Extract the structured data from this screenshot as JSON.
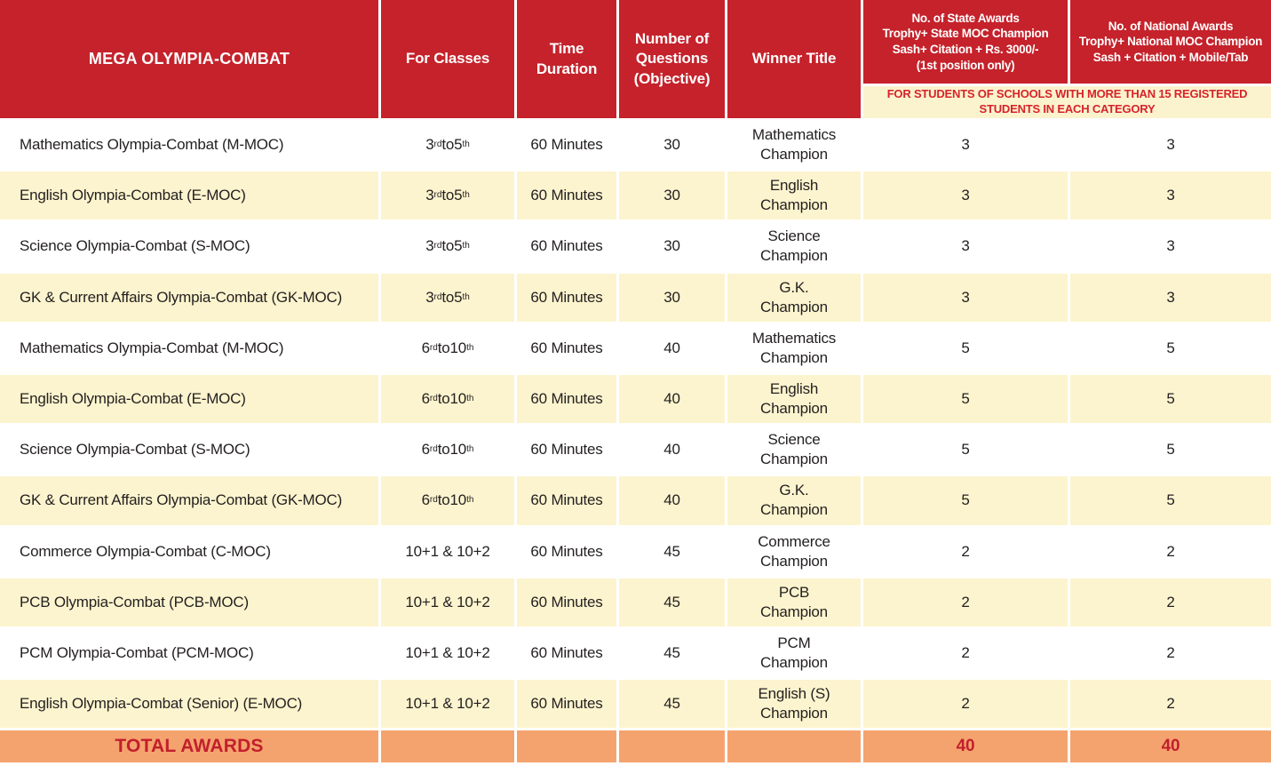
{
  "table": {
    "header": {
      "program": "MEGA OLYMPIA-COMBAT",
      "classes": "For Classes",
      "duration": "Time\nDuration",
      "questions": "Number of\nQuestions\n(Objective)",
      "winner": "Winner Title",
      "state_awards": "No. of State Awards\nTrophy+ State MOC Champion\nSash+ Citation + Rs. 3000/-\n(1st position only)",
      "national_awards": "No. of National Awards\nTrophy+ National MOC Champion\nSash + Citation + Mobile/Tab",
      "banner": "FOR STUDENTS OF SCHOOLS WITH MORE THAN 15 REGISTERED\nSTUDENTS IN EACH CATEGORY"
    },
    "rows": [
      {
        "name": "Mathematics Olympia-Combat (M-MOC)",
        "ca": "3",
        "sa": "rd",
        "cm": " to ",
        "cb": "5",
        "sb": "th",
        "duration": "60 Minutes",
        "questions": "30",
        "winner": "Mathematics\nChampion",
        "state": "3",
        "national": "3"
      },
      {
        "name": "English Olympia-Combat (E-MOC)",
        "ca": "3",
        "sa": "rd",
        "cm": " to ",
        "cb": "5",
        "sb": "th",
        "duration": "60 Minutes",
        "questions": "30",
        "winner": "English\nChampion",
        "state": "3",
        "national": "3"
      },
      {
        "name": "Science Olympia-Combat (S-MOC)",
        "ca": "3",
        "sa": "rd",
        "cm": " to ",
        "cb": "5",
        "sb": "th",
        "duration": "60 Minutes",
        "questions": "30",
        "winner": "Science\nChampion",
        "state": "3",
        "national": "3"
      },
      {
        "name": "GK & Current Affairs Olympia-Combat (GK-MOC)",
        "ca": "3",
        "sa": "rd",
        "cm": " to ",
        "cb": "5",
        "sb": "th",
        "duration": "60 Minutes",
        "questions": "30",
        "winner": "G.K.\nChampion",
        "state": "3",
        "national": "3"
      },
      {
        "name": "Mathematics Olympia-Combat (M-MOC)",
        "ca": "6",
        "sa": "rd",
        "cm": " to ",
        "cb": "10",
        "sb": "th",
        "duration": "60 Minutes",
        "questions": "40",
        "winner": "Mathematics\nChampion",
        "state": "5",
        "national": "5"
      },
      {
        "name": "English Olympia-Combat (E-MOC)",
        "ca": "6",
        "sa": "rd",
        "cm": " to ",
        "cb": "10",
        "sb": "th",
        "duration": "60 Minutes",
        "questions": "40",
        "winner": "English\nChampion",
        "state": "5",
        "national": "5"
      },
      {
        "name": "Science Olympia-Combat (S-MOC)",
        "ca": "6",
        "sa": "rd",
        "cm": " to ",
        "cb": "10",
        "sb": "th",
        "duration": "60 Minutes",
        "questions": "40",
        "winner": "Science\nChampion",
        "state": "5",
        "national": "5"
      },
      {
        "name": "GK & Current Affairs Olympia-Combat (GK-MOC)",
        "ca": "6",
        "sa": "rd",
        "cm": " to ",
        "cb": "10",
        "sb": "th",
        "duration": "60 Minutes",
        "questions": "40",
        "winner": "G.K.\nChampion",
        "state": "5",
        "national": "5"
      },
      {
        "name": "Commerce Olympia-Combat (C-MOC)",
        "ca": "10+1 & 10+2",
        "sa": "",
        "cm": "",
        "cb": "",
        "sb": "",
        "duration": "60 Minutes",
        "questions": "45",
        "winner": "Commerce\nChampion",
        "state": "2",
        "national": "2"
      },
      {
        "name": "PCB Olympia-Combat (PCB-MOC)",
        "ca": "10+1 & 10+2",
        "sa": "",
        "cm": "",
        "cb": "",
        "sb": "",
        "duration": "60 Minutes",
        "questions": "45",
        "winner": "PCB\nChampion",
        "state": "2",
        "national": "2"
      },
      {
        "name": "PCM Olympia-Combat (PCM-MOC)",
        "ca": "10+1 & 10+2",
        "sa": "",
        "cm": "",
        "cb": "",
        "sb": "",
        "duration": "60 Minutes",
        "questions": "45",
        "winner": "PCM\nChampion",
        "state": "2",
        "national": "2"
      },
      {
        "name": "English Olympia-Combat (Senior) (E-MOC)",
        "ca": "10+1 & 10+2",
        "sa": "",
        "cm": "",
        "cb": "",
        "sb": "",
        "duration": "60 Minutes",
        "questions": "45",
        "winner": "English (S)\nChampion",
        "state": "2",
        "national": "2"
      }
    ],
    "total": {
      "label": "TOTAL AWARDS",
      "state": "40",
      "national": "40"
    }
  },
  "colors": {
    "header_red": "#c5222b",
    "row_cream": "#fcf4ce",
    "row_white": "#ffffff",
    "banner_bg": "#fbf3cd",
    "banner_text": "#d6232b",
    "total_orange": "#f5a36e",
    "total_text": "#c21f2c",
    "body_text": "#231f20"
  }
}
